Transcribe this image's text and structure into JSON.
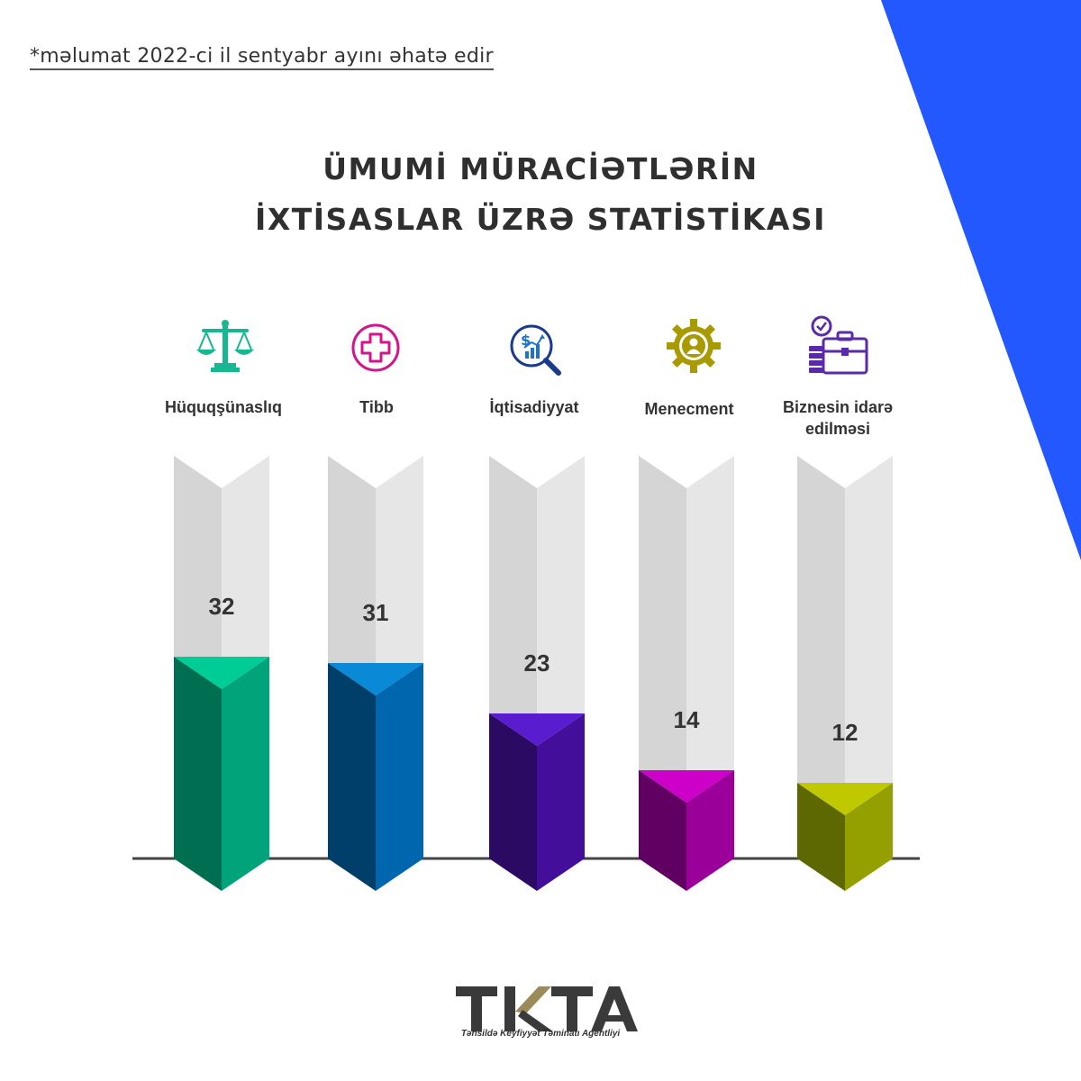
{
  "note": "*məlumat 2022-ci il sentyabr ayını əhatə edir",
  "chart_data": {
    "type": "bar",
    "title": [
      "ÜMUMİ MÜRACİƏTLƏRİN",
      "İXTİSASLAR ÜZRƏ STATİSTİKASI"
    ],
    "categories": [
      "Hüquqşünaslıq",
      "Tibb",
      "İqtisadiyyat",
      "Menecment",
      "Biznesin idarə edilməsi"
    ],
    "values": [
      32,
      31,
      23,
      14,
      12
    ],
    "data_labels": [
      "32",
      "31",
      "23",
      "14",
      "12"
    ],
    "icons": [
      "scales-icon",
      "medical-cross-icon",
      "finance-search-icon",
      "management-gear-icon",
      "briefcase-clock-icon"
    ],
    "colors": {
      "front": [
        "#00a37a",
        "#0066ad",
        "#430e9a",
        "#9a0099",
        "#93a000"
      ],
      "side": [
        "#006e50",
        "#003f6a",
        "#2a0a63",
        "#610063",
        "#5e6800"
      ],
      "top": [
        "#00cc96",
        "#0a8ad6",
        "#5a1ccf",
        "#cc00c9",
        "#c0c900"
      ]
    },
    "ylim": [
      0,
      40
    ],
    "grid": false,
    "legend": "none"
  },
  "logo": {
    "text": "TKTA",
    "subtitle": "Təhsildə Keyfiyyət Təminatı Agentliyi",
    "colors": {
      "dark": "#3a3a3a",
      "gold": "#9b8a5a"
    }
  },
  "theme": {
    "accent": "#2358ff",
    "ghost_front": "#e6e6e6",
    "ghost_side": "#d5d5d5",
    "baseline": "#444444"
  }
}
